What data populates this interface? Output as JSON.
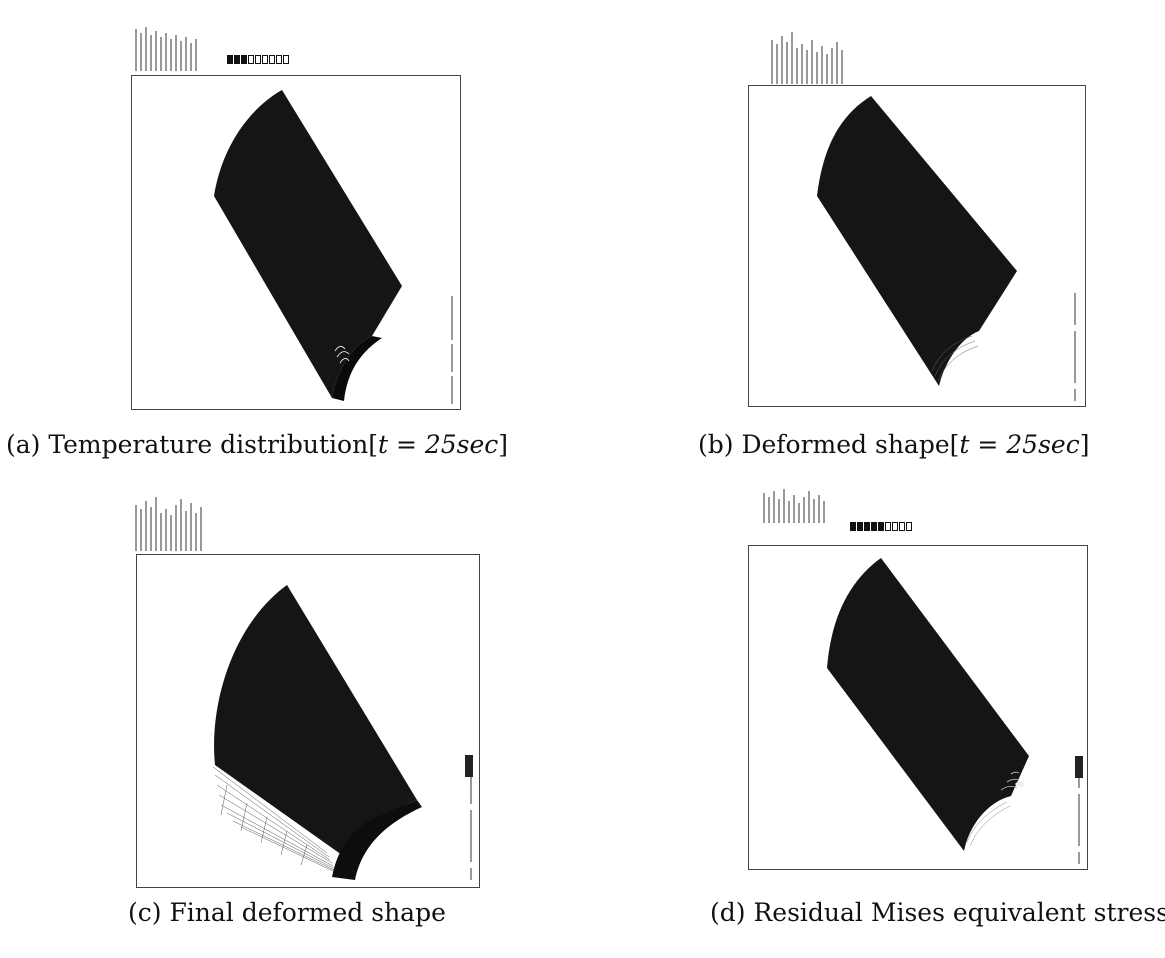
{
  "panels": [
    {
      "id": "a",
      "caption_prefix": "(a) Temperature distribution[",
      "caption_math": "t = 25sec",
      "caption_suffix": "]",
      "legend_dark_swatches": 3
    },
    {
      "id": "b",
      "caption_prefix": "(b) Deformed shape[",
      "caption_math": "t = 25sec",
      "caption_suffix": "]"
    },
    {
      "id": "c",
      "caption_prefix": "(c) Final deformed shape",
      "caption_math": "",
      "caption_suffix": ""
    },
    {
      "id": "d",
      "caption_prefix": "(d) Residual Mises equivalent stress",
      "caption_math": "",
      "caption_suffix": "",
      "legend_dark_swatches": 5
    }
  ]
}
